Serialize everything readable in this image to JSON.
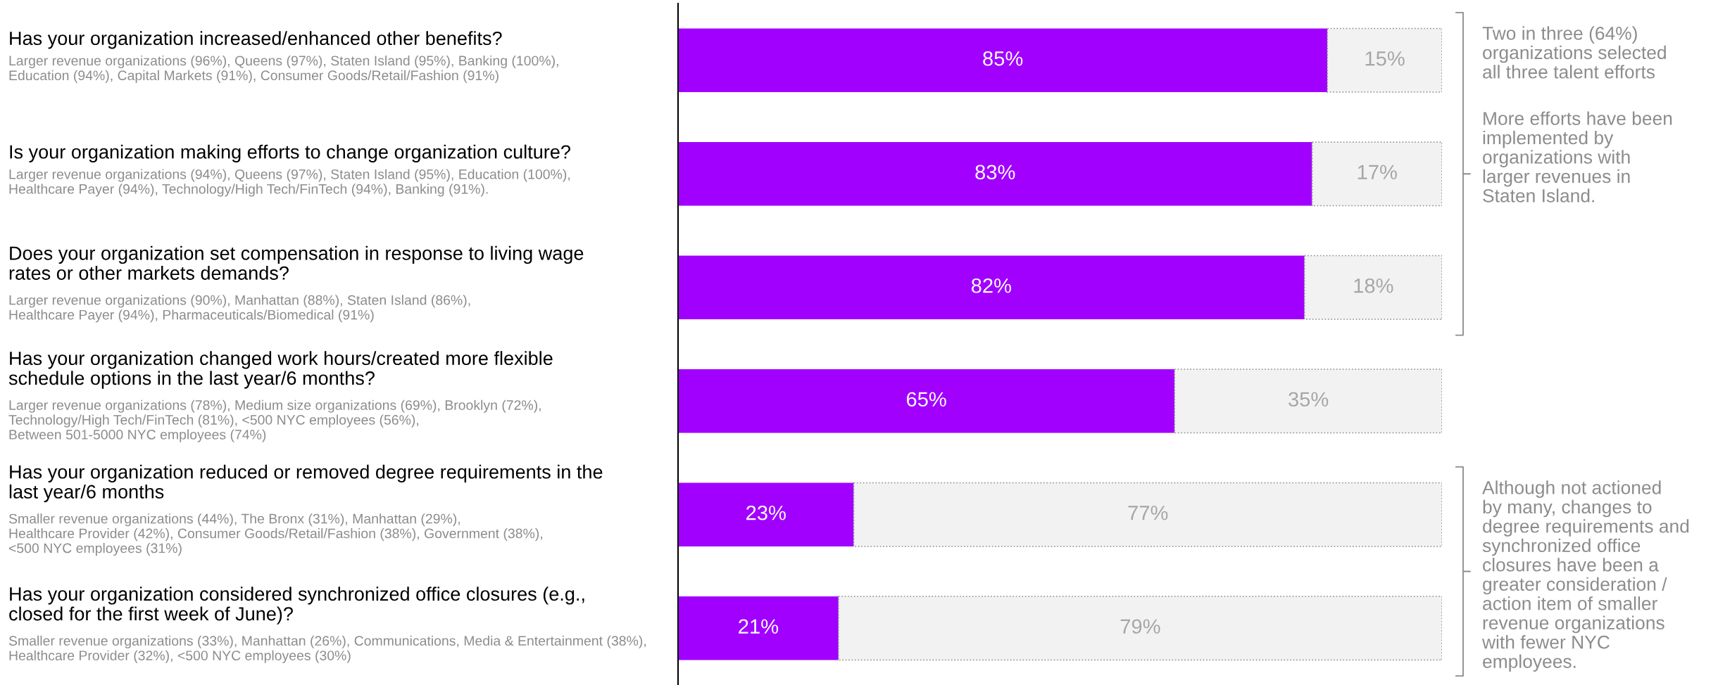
{
  "chart_data": {
    "type": "bar",
    "orientation": "horizontal",
    "stacked": true,
    "categories": [
      "Has your organization increased/enhanced other benefits?",
      "Is your organization making efforts to change organization culture?",
      "Does your organization set compensation in response to living wage\nrates or other markets demands?",
      "Has your organization changed work hours/created more flexible\nschedule options in the last year/6 months?",
      "Has your organization reduced or removed degree requirements in the\nlast year/6 months",
      "Has your organization considered synchronized office closures (e.g.,\nclosed for the first week of June)?"
    ],
    "series": [
      {
        "color": "#a100ff",
        "values": [
          85,
          83,
          82,
          65,
          23,
          21
        ],
        "value_labels": [
          "85%",
          "83%",
          "82%",
          "65%",
          "23%",
          "21%"
        ]
      },
      {
        "color": "#f2f2f2",
        "values": [
          15,
          17,
          18,
          35,
          77,
          79
        ],
        "value_labels": [
          "15%",
          "17%",
          "18%",
          "35%",
          "77%",
          "79%"
        ]
      }
    ],
    "xlim": [
      0,
      100
    ],
    "annotations": [
      "Larger revenue organizations (96%), Queens (97%), Staten Island (95%), Banking (100%),\nEducation (94%), Capital Markets (91%), Consumer Goods/Retail/Fashion (91%)",
      "Larger revenue organizations (94%), Queens (97%), Staten Island (95%), Education (100%),\nHealthcare Payer (94%), Technology/High Tech/FinTech (94%), Banking (91%).",
      "Larger revenue organizations (90%), Manhattan (88%), Staten Island (86%),\nHealthcare Payer (94%), Pharmaceuticals/Biomedical (91%)",
      "Larger revenue organizations (78%), Medium size organizations (69%), Brooklyn (72%),\nTechnology/High Tech/FinTech (81%), <500 NYC employees (56%),\nBetween 501-5000 NYC employees (74%)",
      "Smaller revenue organizations (44%), The Bronx (31%), Manhattan (29%),\nHealthcare Provider (42%), Consumer Goods/Retail/Fashion (38%), Government (38%),\n<500 NYC employees (31%)",
      "Smaller revenue organizations (33%), Manhattan (26%), Communications, Media & Entertainment (38%),\nHealthcare Provider (32%), <500 NYC employees (30%)",
      "Two in three (64%)\norganizations selected\nall three talent efforts",
      "More efforts have been\nimplemented by\norganizations with\nlarger revenues in\nStaten Island.",
      "Although not actioned\nby many, changes to\ndegree requirements and\nsynchronized office\nclosures have been a\ngreater consideration /\naction item of smaller\nrevenue organizations\nwith fewer NYC\nemployees."
    ]
  }
}
